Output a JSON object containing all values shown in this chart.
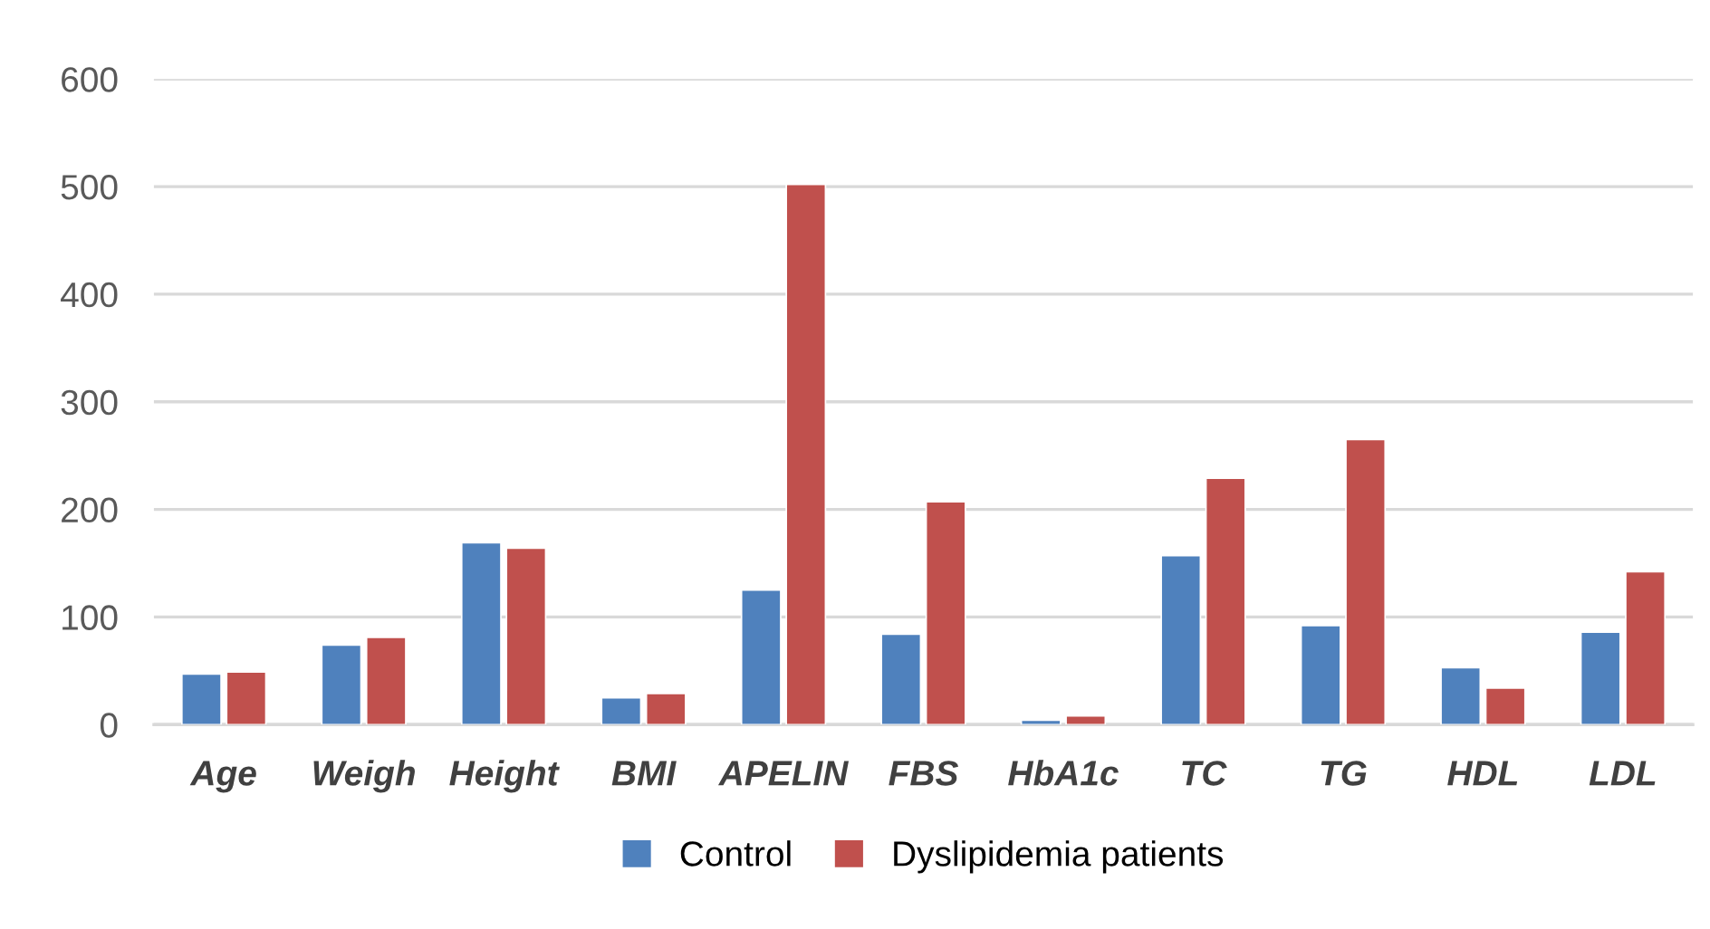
{
  "chart_data": {
    "type": "bar",
    "categories": [
      "Age",
      "Weigh",
      "Height",
      "BMI",
      "APELIN",
      "FBS",
      "HbA1c",
      "TC",
      "TG",
      "HDL",
      "LDL"
    ],
    "series": [
      {
        "name": "Control",
        "color": "#4f81bd",
        "values": [
          47,
          74,
          169,
          25,
          125,
          84,
          4,
          157,
          92,
          53,
          86
        ]
      },
      {
        "name": "Dyslipidemia patients",
        "color": "#c0504d",
        "values": [
          49,
          81,
          164,
          29,
          502,
          207,
          8,
          229,
          265,
          34,
          142
        ]
      }
    ],
    "ylim": [
      0,
      600
    ],
    "yticks": [
      0,
      100,
      200,
      300,
      400,
      500,
      600
    ],
    "grid": "y",
    "legend": "bottom"
  }
}
